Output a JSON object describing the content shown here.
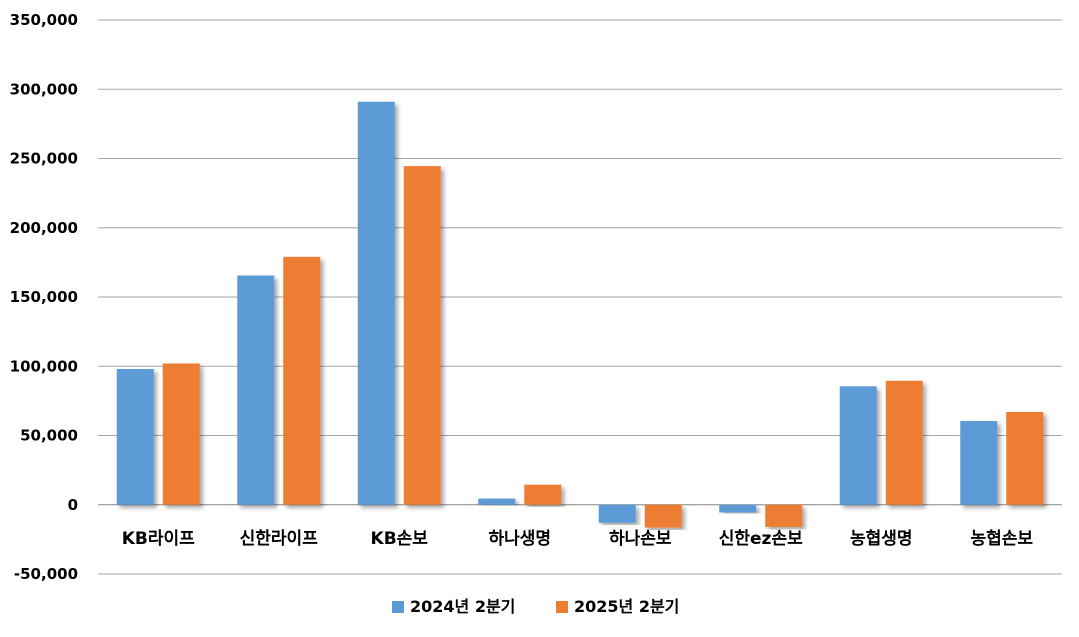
{
  "chart_data": {
    "type": "bar",
    "categories": [
      "KB라이프",
      "신한라이프",
      "KB손보",
      "하나생명",
      "하나손보",
      "신한ez손보",
      "농협생명",
      "농협손보"
    ],
    "series": [
      {
        "name": "2024년 2분기",
        "color": "#5B9BD5",
        "values": [
          98000,
          165500,
          291000,
          4500,
          -13000,
          -5500,
          85500,
          60500
        ]
      },
      {
        "name": "2025년 2분기",
        "color": "#ED7D31",
        "values": [
          102000,
          179000,
          244500,
          14500,
          -16500,
          -16000,
          89500,
          67000
        ]
      }
    ],
    "yticks": [
      "350,000",
      "300,000",
      "250,000",
      "200,000",
      "150,000",
      "100,000",
      "50,000",
      "0",
      "-50,000"
    ],
    "ylim": [
      -50000,
      350000
    ],
    "grid": true,
    "legend_position": "bottom",
    "title": "",
    "xlabel": "",
    "ylabel": ""
  }
}
